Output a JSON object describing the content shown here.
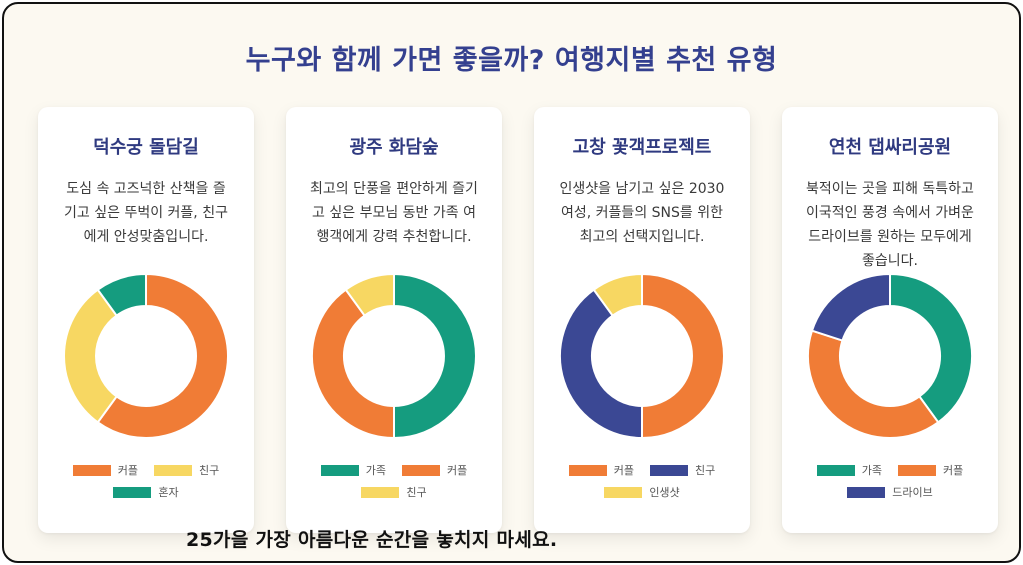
{
  "title": "누구와 함께 가면 좋을까? 여행지별 추천 유형",
  "footer": "25가을 가장 아름다운 순간을 놓치지 마세요.",
  "colors": {
    "orange": "#f07c36",
    "yellow": "#f7d762",
    "green": "#159c7f",
    "navy": "#3b4894",
    "title": "#34408f"
  },
  "cards": [
    {
      "title": "덕수궁 돌담길",
      "description": "도심 속 고즈넉한 산책을 즐기고 싶은 뚜벅이 커플, 친구에게 안성맞춤입니다."
    },
    {
      "title": "광주 화담숲",
      "description": "최고의 단풍을 편안하게 즐기고 싶은 부모님 동반 가족 여행객에게 강력 추천합니다."
    },
    {
      "title": "고창 꽃객프로젝트",
      "description": "인생샷을 남기고 싶은 2030 여성, 커플들의 SNS를 위한 최고의 선택지입니다."
    },
    {
      "title": "연천 댑싸리공원",
      "description": "북적이는 곳을 피해 독특하고 이국적인 풍경 속에서 가벼운 드라이브를 원하는 모두에게 좋습니다."
    }
  ],
  "chart_data": [
    {
      "type": "pie",
      "donut": true,
      "categories": [
        "커플",
        "친구",
        "혼자"
      ],
      "values": [
        60,
        30,
        10
      ],
      "colors": [
        "#f07c36",
        "#f7d762",
        "#159c7f"
      ]
    },
    {
      "type": "pie",
      "donut": true,
      "categories": [
        "가족",
        "커플",
        "친구"
      ],
      "values": [
        50,
        40,
        10
      ],
      "colors": [
        "#159c7f",
        "#f07c36",
        "#f7d762"
      ]
    },
    {
      "type": "pie",
      "donut": true,
      "categories": [
        "커플",
        "친구",
        "인생샷"
      ],
      "values": [
        50,
        40,
        10
      ],
      "colors": [
        "#f07c36",
        "#3b4894",
        "#f7d762"
      ]
    },
    {
      "type": "pie",
      "donut": true,
      "categories": [
        "가족",
        "커플",
        "드라이브"
      ],
      "values": [
        40,
        40,
        20
      ],
      "colors": [
        "#159c7f",
        "#f07c36",
        "#3b4894"
      ]
    }
  ]
}
